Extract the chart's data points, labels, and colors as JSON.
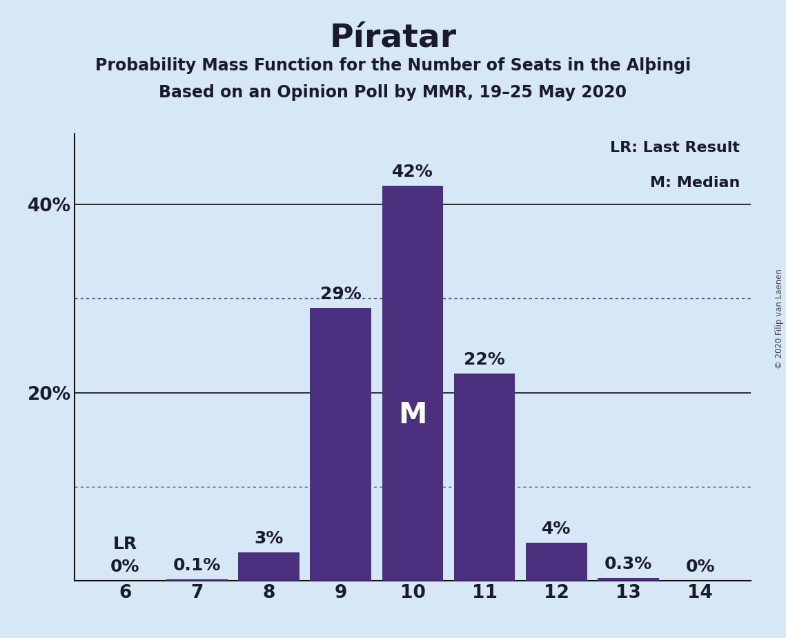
{
  "title": "Píratar",
  "subtitle1": "Probability Mass Function for the Number of Seats in the Alþingi",
  "subtitle2": "Based on an Opinion Poll by MMR, 19–25 May 2020",
  "copyright": "© 2020 Filip van Laenen",
  "seats": [
    6,
    7,
    8,
    9,
    10,
    11,
    12,
    13,
    14
  ],
  "probabilities": [
    0.0,
    0.001,
    0.03,
    0.29,
    0.42,
    0.22,
    0.04,
    0.003,
    0.0
  ],
  "bar_labels": [
    "0%",
    "0.1%",
    "3%",
    "29%",
    "42%",
    "22%",
    "4%",
    "0.3%",
    "0%"
  ],
  "bar_color": "#4b3080",
  "background_color": "#d6e8f5",
  "median_seat": 10,
  "lr_seat": 6,
  "lr_label": "LR",
  "median_label": "M",
  "dotted_lines": [
    0.1,
    0.3
  ],
  "solid_lines": [
    0.2,
    0.4
  ],
  "legend_text1": "LR: Last Result",
  "legend_text2": "M: Median",
  "title_fontsize": 34,
  "subtitle_fontsize": 17,
  "tick_fontsize": 19,
  "bar_label_fontsize": 18,
  "legend_fontsize": 16,
  "ylim_max": 0.475
}
